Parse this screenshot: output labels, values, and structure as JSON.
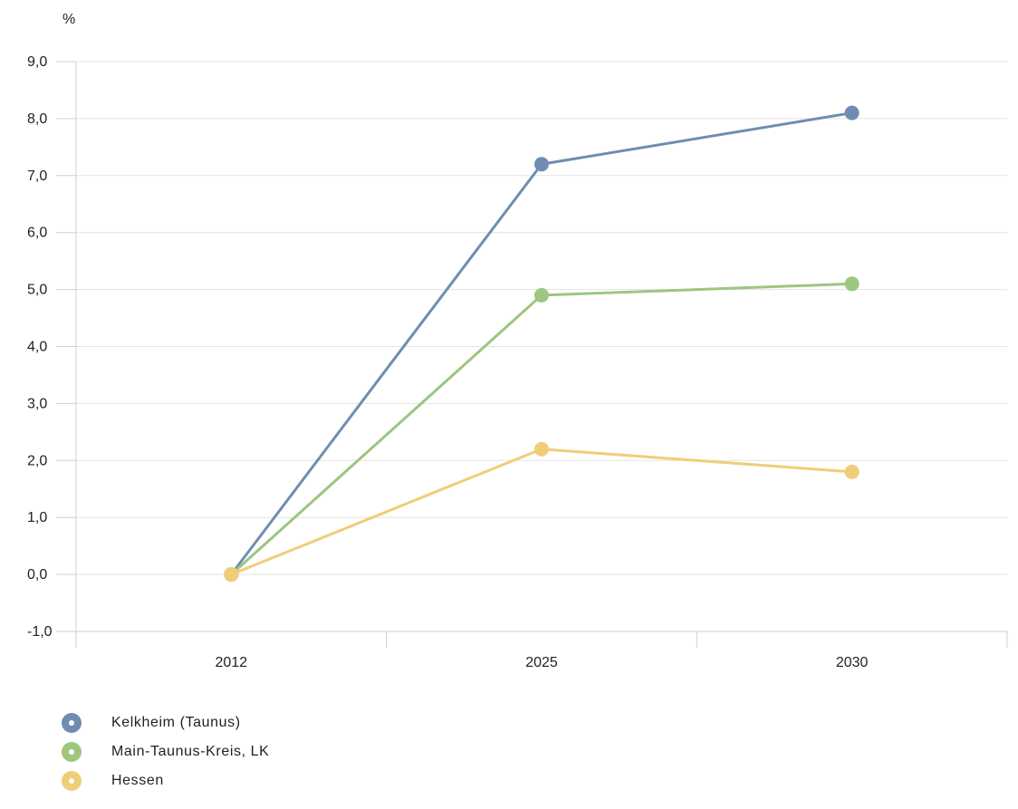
{
  "chart_data": {
    "type": "line",
    "unit_label": "%",
    "x": [
      "2012",
      "2025",
      "2030"
    ],
    "y_ticks": [
      "9,0",
      "8,0",
      "7,0",
      "6,0",
      "5,0",
      "4,0",
      "3,0",
      "2,0",
      "1,0",
      "0,0",
      "-1,0"
    ],
    "ylim": [
      -1,
      9
    ],
    "grid": true,
    "legend_position": "bottom-left",
    "series": [
      {
        "name": "Kelkheim (Taunus)",
        "color": "#6f8db3",
        "values": [
          0.0,
          7.2,
          8.1
        ]
      },
      {
        "name": "Main-Taunus-Kreis, LK",
        "color": "#9dc67f",
        "values": [
          0.0,
          4.9,
          5.1
        ]
      },
      {
        "name": "Hessen",
        "color": "#f0cd78",
        "values": [
          0.0,
          2.2,
          1.8
        ]
      }
    ]
  },
  "legend": {
    "items": [
      {
        "label": "Kelkheim (Taunus)",
        "color": "#6f8db3"
      },
      {
        "label": "Main-Taunus-Kreis, LK",
        "color": "#9dc67f"
      },
      {
        "label": "Hessen",
        "color": "#f0cd78"
      }
    ]
  }
}
